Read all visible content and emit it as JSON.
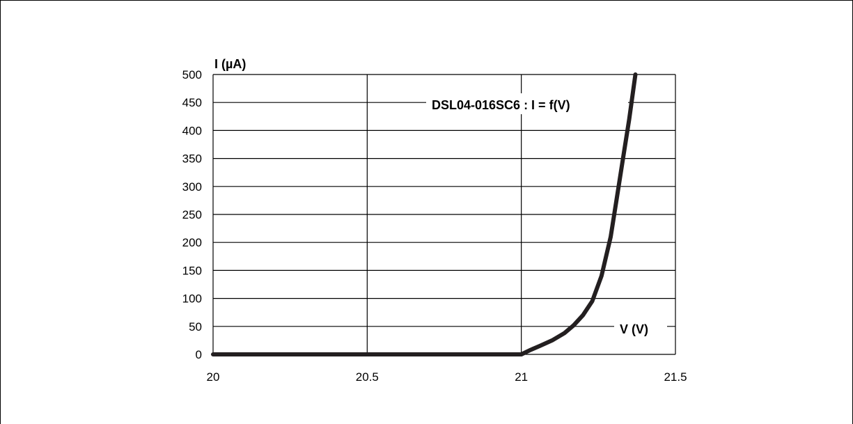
{
  "chart_data": {
    "type": "line",
    "title": "DSL04-016SC6 : I = f(V)",
    "xlabel": "V (V)",
    "ylabel": "I (µA)",
    "xlim": [
      20,
      21.5
    ],
    "ylim": [
      0,
      500
    ],
    "x_ticks": [
      "20",
      "20.5",
      "21",
      "21.5"
    ],
    "y_ticks": [
      "0",
      "50",
      "100",
      "150",
      "200",
      "250",
      "300",
      "350",
      "400",
      "450",
      "500"
    ],
    "grid": true,
    "series": [
      {
        "x": [
          20,
          20.9,
          21.0,
          21.03,
          21.06,
          21.1,
          21.14,
          21.17,
          21.2,
          21.23,
          21.26,
          21.29,
          21.31,
          21.33,
          21.35,
          21.37
        ],
        "y": [
          0,
          0,
          0,
          8,
          15,
          25,
          38,
          52,
          70,
          95,
          140,
          210,
          280,
          350,
          420,
          500
        ]
      }
    ]
  }
}
